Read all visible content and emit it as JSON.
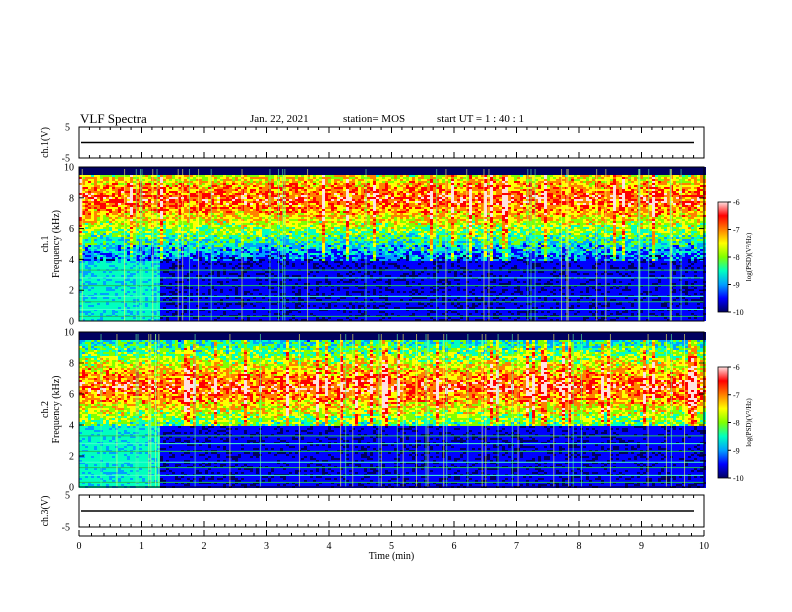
{
  "header": {
    "title": "VLF Spectra",
    "date": "Jan. 22, 2021",
    "station": "station= MOS",
    "start": "start  UT =   1 : 40 : 1"
  },
  "chart_data": {
    "type": "heatmap",
    "xlabel": "Time  (min)",
    "xlim": [
      0,
      10
    ],
    "xticks": [
      "0",
      "1",
      "2",
      "3",
      "4",
      "5",
      "6",
      "7",
      "8",
      "9",
      "10"
    ],
    "panels": [
      {
        "id": "waveform-ch1",
        "type": "line",
        "ylabel": "ch.1(V)",
        "ylim": [
          -5,
          5
        ],
        "yticks": [
          "5",
          "-5"
        ],
        "baseline": 0
      },
      {
        "id": "spectrogram-ch1",
        "type": "heatmap",
        "ylabel_line1": "ch.1",
        "ylabel_line2": "Frequency (kHz)",
        "ylim": [
          0,
          10
        ],
        "yticks": [
          "0",
          "2",
          "4",
          "6",
          "8",
          "10"
        ],
        "band_center_khz": 8,
        "colorbar": {
          "label": "log(PSD)(V²/Hz)",
          "range": [
            -10,
            -6
          ],
          "ticks": [
            "-6",
            "-7",
            "-8",
            "-9",
            "-10"
          ]
        }
      },
      {
        "id": "spectrogram-ch2",
        "type": "heatmap",
        "ylabel_line1": "ch.2",
        "ylabel_line2": "Frequency (kHz)",
        "ylim": [
          0,
          10
        ],
        "yticks": [
          "0",
          "2",
          "4",
          "6",
          "8",
          "10"
        ],
        "band_center_khz": 6.5,
        "colorbar": {
          "label": "log(PSD)(V²/Hz)",
          "range": [
            -10,
            -6
          ],
          "ticks": [
            "-6",
            "-7",
            "-8",
            "-9",
            "-10"
          ]
        }
      },
      {
        "id": "waveform-ch3",
        "type": "line",
        "ylabel": "ch.3(V)",
        "ylim": [
          -5,
          5
        ],
        "yticks": [
          "5",
          "-5"
        ],
        "baseline": 0
      }
    ],
    "colormap": [
      "#000060",
      "#0000ff",
      "#00a0ff",
      "#00ffc0",
      "#80ff00",
      "#ffff00",
      "#ff8000",
      "#ff0000",
      "#ffe0e0"
    ]
  }
}
